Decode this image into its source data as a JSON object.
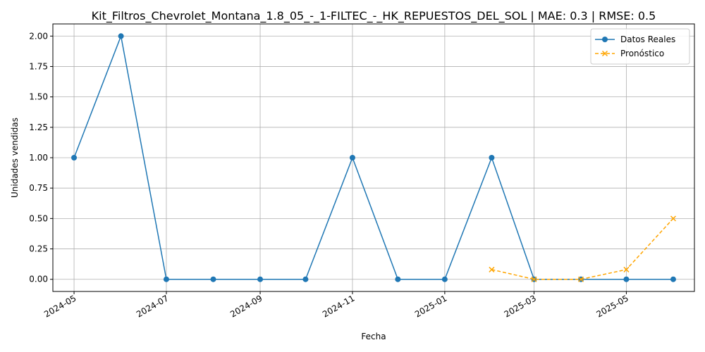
{
  "chart_data": {
    "type": "line",
    "title": "Kit_Filtros_Chevrolet_Montana_1.8_05_-_1-FILTEC_-_HK_REPUESTOS_DEL_SOL | MAE: 0.3 | RMSE: 0.5",
    "xlabel": "Fecha",
    "ylabel": "Unidades vendidas",
    "x_ticks": [
      "2024-05",
      "2024-07",
      "2024-09",
      "2024-11",
      "2025-01",
      "2025-03",
      "2025-05"
    ],
    "y_ticks": [
      "0.00",
      "0.25",
      "0.50",
      "0.75",
      "1.00",
      "1.25",
      "1.50",
      "1.75",
      "2.00"
    ],
    "ylim": [
      -0.1,
      2.1
    ],
    "grid": true,
    "legend_position": "top-right",
    "series": [
      {
        "name": "Datos Reales",
        "color": "#1f77b4",
        "style": "solid",
        "marker": "circle",
        "x": [
          "2024-05-01",
          "2024-06-01",
          "2024-07-01",
          "2024-08-01",
          "2024-09-01",
          "2024-10-01",
          "2024-11-01",
          "2024-12-01",
          "2025-01-01",
          "2025-02-01",
          "2025-03-01",
          "2025-04-01",
          "2025-05-01",
          "2025-06-01"
        ],
        "values": [
          1,
          2,
          0,
          0,
          0,
          0,
          1,
          0,
          0,
          1,
          0,
          0,
          0,
          0
        ]
      },
      {
        "name": "Pronóstico",
        "color": "#ffa500",
        "style": "dashed",
        "marker": "x",
        "x": [
          "2025-02-01",
          "2025-03-01",
          "2025-04-01",
          "2025-05-01",
          "2025-06-01"
        ],
        "values": [
          0.08,
          0.0,
          0.0,
          0.08,
          0.5
        ]
      }
    ]
  }
}
